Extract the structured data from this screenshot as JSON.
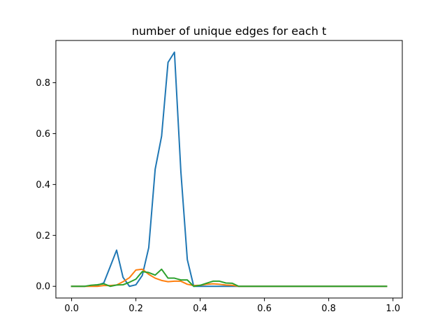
{
  "chart_data": {
    "type": "line",
    "title": "number of unique edges for each t",
    "xlabel": "",
    "ylabel": "",
    "xlim": [
      -0.049,
      1.029
    ],
    "ylim": [
      -0.046,
      0.966
    ],
    "xticks": [
      0.0,
      0.2,
      0.4,
      0.6,
      0.8,
      1.0
    ],
    "xtick_labels": [
      "0.0",
      "0.2",
      "0.4",
      "0.6",
      "0.8",
      "1.0"
    ],
    "yticks": [
      0.0,
      0.2,
      0.4,
      0.6,
      0.8
    ],
    "ytick_labels": [
      "0.0",
      "0.2",
      "0.4",
      "0.6",
      "0.8"
    ],
    "grid": false,
    "legend": false,
    "colors": [
      "#1f77b4",
      "#ff7f0e",
      "#2ca02c"
    ],
    "x": [
      0.0,
      0.02,
      0.04,
      0.06,
      0.08,
      0.1,
      0.12,
      0.14,
      0.16,
      0.18,
      0.2,
      0.22,
      0.24,
      0.26,
      0.28,
      0.3,
      0.32,
      0.34,
      0.36,
      0.38,
      0.4,
      0.42,
      0.44,
      0.46,
      0.48,
      0.5,
      0.52,
      0.54,
      0.56,
      0.58,
      0.6,
      0.62,
      0.64,
      0.66,
      0.68,
      0.7,
      0.72,
      0.74,
      0.76,
      0.78,
      0.8,
      0.82,
      0.84,
      0.86,
      0.88,
      0.9,
      0.92,
      0.94,
      0.96,
      0.98
    ],
    "series": [
      {
        "color": "#1f77b4",
        "values": [
          0.0,
          0.0,
          0.0,
          0.002,
          0.004,
          0.013,
          0.077,
          0.142,
          0.035,
          0.0,
          0.006,
          0.043,
          0.152,
          0.46,
          0.59,
          0.88,
          0.92,
          0.45,
          0.105,
          0.0,
          0.0,
          0.0,
          0.0,
          0.0,
          0.0,
          0.0,
          0.0,
          0.0,
          0.0,
          0.0,
          0.0,
          0.0,
          0.0,
          0.0,
          0.0,
          0.0,
          0.0,
          0.0,
          0.0,
          0.0,
          0.0,
          0.0,
          0.0,
          0.0,
          0.0,
          0.0,
          0.0,
          0.0,
          0.0,
          0.0
        ]
      },
      {
        "color": "#ff7f0e",
        "values": [
          0.0,
          0.0,
          0.0,
          0.0,
          0.0,
          0.003,
          0.003,
          0.005,
          0.018,
          0.034,
          0.064,
          0.067,
          0.047,
          0.032,
          0.023,
          0.018,
          0.02,
          0.02,
          0.008,
          0.003,
          0.004,
          0.008,
          0.01,
          0.008,
          0.005,
          0.004,
          0.0,
          0.0,
          0.0,
          0.0,
          0.0,
          0.0,
          0.0,
          0.0,
          0.0,
          0.0,
          0.0,
          0.0,
          0.0,
          0.0,
          0.0,
          0.0,
          0.0,
          0.0,
          0.0,
          0.0,
          0.0,
          0.0,
          0.0,
          0.0
        ]
      },
      {
        "color": "#2ca02c",
        "values": [
          0.0,
          0.0,
          0.0,
          0.004,
          0.006,
          0.01,
          0.0,
          0.005,
          0.006,
          0.016,
          0.028,
          0.058,
          0.054,
          0.044,
          0.067,
          0.032,
          0.032,
          0.025,
          0.025,
          0.0,
          0.004,
          0.012,
          0.02,
          0.02,
          0.013,
          0.012,
          0.0,
          0.0,
          0.0,
          0.0,
          0.0,
          0.0,
          0.0,
          0.0,
          0.0,
          0.0,
          0.0,
          0.0,
          0.0,
          0.0,
          0.0,
          0.0,
          0.0,
          0.0,
          0.0,
          0.0,
          0.0,
          0.0,
          0.0,
          0.0
        ]
      }
    ]
  }
}
